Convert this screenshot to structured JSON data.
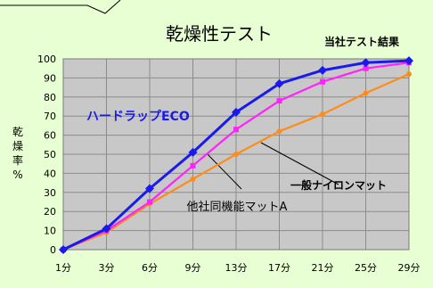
{
  "chart_data": {
    "type": "line",
    "title": "乾燥性テスト",
    "subtitle": "当社テスト結果",
    "xlabel": "",
    "ylabel": "乾燥率%",
    "ylabel_chars": [
      "乾",
      "燥",
      "率",
      "%"
    ],
    "categories": [
      "1分",
      "3分",
      "6分",
      "9分",
      "13分",
      "17分",
      "21分",
      "25分",
      "29分"
    ],
    "ylim": [
      0,
      100
    ],
    "yticks": [
      0,
      10,
      20,
      30,
      40,
      50,
      60,
      70,
      80,
      90,
      100
    ],
    "grid": true,
    "series": [
      {
        "name": "ハードラップECO",
        "color": "#1a1aee",
        "marker": "diamond",
        "values": [
          0,
          11,
          32,
          51,
          72,
          87,
          94,
          98,
          99
        ]
      },
      {
        "name": "他社同機能マットA",
        "color": "#ff22ff",
        "marker": "square",
        "values": [
          0,
          10,
          25,
          44,
          63,
          78,
          88,
          95,
          98
        ]
      },
      {
        "name": "一般ナイロンマット",
        "color": "#ff8c1a",
        "marker": "circle",
        "values": [
          0,
          9,
          24,
          37,
          50,
          62,
          71,
          82,
          92
        ]
      }
    ]
  },
  "colors": {
    "plot_background": "#c8c8c8",
    "gridline": "#8c8c8c",
    "page_background": "#e8ffd4",
    "series_label_eco": "#1a1aee"
  }
}
